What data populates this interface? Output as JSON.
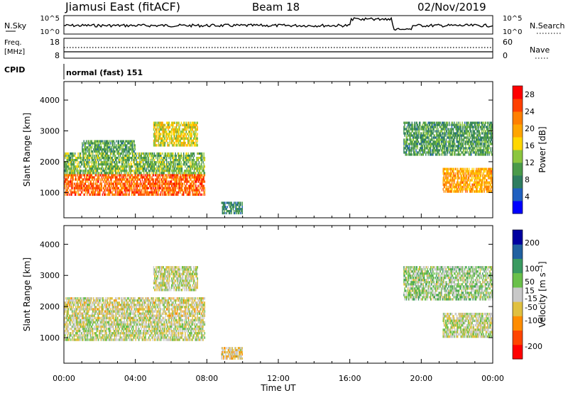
{
  "header": {
    "station": "Jiamusi East (fitACF)",
    "beam": "Beam 18",
    "date": "02/Nov/2019"
  },
  "top_panels": {
    "nsky": {
      "label": "N.Sky",
      "right_label": "N.Search",
      "ticks_left": [
        "10^5",
        "10^0"
      ],
      "ticks_right": [
        "10^5",
        "10^0"
      ]
    },
    "freq": {
      "label_line1": "Freq.",
      "label_line2": "[MHz]",
      "right_label": "Nave",
      "ticks_left": [
        "18",
        "8"
      ],
      "ticks_right": [
        "60",
        "0"
      ]
    },
    "cpid": {
      "label": "CPID",
      "value": "normal (fast) 151"
    }
  },
  "colors": {
    "power_scale": [
      "#0000ff",
      "#2060c0",
      "#2e7d60",
      "#4a9a4a",
      "#8cc63f",
      "#ffd700",
      "#ffa500",
      "#ff7f00",
      "#ff4000",
      "#ff0000"
    ],
    "velocity_scale": [
      "#ff0000",
      "#ff4500",
      "#ff8c00",
      "#e0c040",
      "#c8c8c8",
      "#6ac04a",
      "#3a9a60",
      "#2060a0",
      "#0000a0"
    ]
  },
  "chart_data": [
    {
      "type": "heatmap",
      "title": "Power",
      "xlabel": "",
      "ylabel": "Slant Range [km]",
      "x_ticks": [
        "00:00",
        "04:00",
        "08:00",
        "12:00",
        "16:00",
        "20:00",
        "00:00"
      ],
      "xlim_hours": [
        0,
        24
      ],
      "y_ticks": [
        "4000",
        "3000",
        "2000",
        "1000"
      ],
      "ylim_km": [
        180,
        4600
      ],
      "colorbar": {
        "label": "Power [dB]",
        "ticks": [
          "28",
          "24",
          "20",
          "16",
          "12",
          "8",
          "4"
        ],
        "range": [
          0,
          30
        ]
      },
      "regions": [
        {
          "t": [
            0.0,
            7.9
          ],
          "r": [
            900,
            1600
          ],
          "level": 24
        },
        {
          "t": [
            0.0,
            7.9
          ],
          "r": [
            1600,
            2300
          ],
          "level": 12
        },
        {
          "t": [
            1.0,
            4.0
          ],
          "r": [
            2300,
            2700
          ],
          "level": 10
        },
        {
          "t": [
            5.0,
            7.5
          ],
          "r": [
            2500,
            3300
          ],
          "level": 16
        },
        {
          "t": [
            21.2,
            24.0
          ],
          "r": [
            1000,
            1800
          ],
          "level": 20
        },
        {
          "t": [
            19.0,
            24.0
          ],
          "r": [
            2200,
            3300
          ],
          "level": 10
        },
        {
          "t": [
            8.8,
            10.0
          ],
          "r": [
            300,
            700
          ],
          "level": 8
        }
      ]
    },
    {
      "type": "heatmap",
      "title": "Velocity",
      "xlabel": "Time UT",
      "ylabel": "Slant Range [km]",
      "x_ticks": [
        "00:00",
        "04:00",
        "08:00",
        "12:00",
        "16:00",
        "20:00",
        "00:00"
      ],
      "xlim_hours": [
        0,
        24
      ],
      "y_ticks": [
        "4000",
        "3000",
        "2000",
        "1000"
      ],
      "ylim_km": [
        180,
        4600
      ],
      "colorbar": {
        "label": "Velocity [m s⁻¹]",
        "ticks": [
          "200",
          "100",
          "50",
          "15",
          "-15",
          "-50",
          "-100",
          "-200"
        ],
        "range": [
          -250,
          250
        ]
      },
      "regions": [
        {
          "t": [
            0.0,
            7.9
          ],
          "r": [
            900,
            1600
          ],
          "level": 0
        },
        {
          "t": [
            0.0,
            7.9
          ],
          "r": [
            1600,
            2300
          ],
          "level": -20
        },
        {
          "t": [
            5.0,
            7.5
          ],
          "r": [
            2500,
            3300
          ],
          "level": 0
        },
        {
          "t": [
            21.2,
            24.0
          ],
          "r": [
            1000,
            1800
          ],
          "level": 0
        },
        {
          "t": [
            19.0,
            24.0
          ],
          "r": [
            2200,
            3300
          ],
          "level": 30
        },
        {
          "t": [
            8.8,
            10.0
          ],
          "r": [
            300,
            700
          ],
          "level": -40
        }
      ]
    }
  ]
}
